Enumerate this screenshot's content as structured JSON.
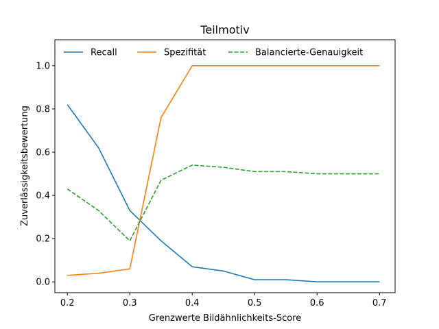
{
  "chart_data": {
    "type": "line",
    "title": "Teilmotiv",
    "xlabel": "Grenzwerte Bildähnlichkeits-Score",
    "ylabel": "Zuverlässigkeitsbewertung",
    "x": [
      0.2,
      0.25,
      0.3,
      0.35,
      0.4,
      0.45,
      0.5,
      0.55,
      0.6,
      0.65,
      0.7
    ],
    "xlim": [
      0.18,
      0.725
    ],
    "ylim": [
      -0.05,
      1.12
    ],
    "xticks": [
      "0.2",
      "0.3",
      "0.4",
      "0.5",
      "0.6",
      "0.7"
    ],
    "yticks": [
      "0.0",
      "0.2",
      "0.4",
      "0.6",
      "0.8",
      "1.0"
    ],
    "grid": false,
    "legend_position": "top",
    "series": [
      {
        "name": "Recall",
        "color": "#1f77b4",
        "style": "solid",
        "values": [
          0.82,
          0.62,
          0.33,
          0.19,
          0.07,
          0.05,
          0.01,
          0.01,
          0.0,
          0.0,
          0.0
        ]
      },
      {
        "name": "Spezifität",
        "color": "#ff7f0e",
        "style": "solid",
        "values": [
          0.03,
          0.04,
          0.06,
          0.76,
          1.0,
          1.0,
          1.0,
          1.0,
          1.0,
          1.0,
          1.0
        ]
      },
      {
        "name": "Balancierte-Genauigkeit",
        "color": "#2ca02c",
        "style": "dashed",
        "values": [
          0.43,
          0.33,
          0.19,
          0.47,
          0.54,
          0.53,
          0.51,
          0.51,
          0.5,
          0.5,
          0.5
        ]
      }
    ]
  }
}
